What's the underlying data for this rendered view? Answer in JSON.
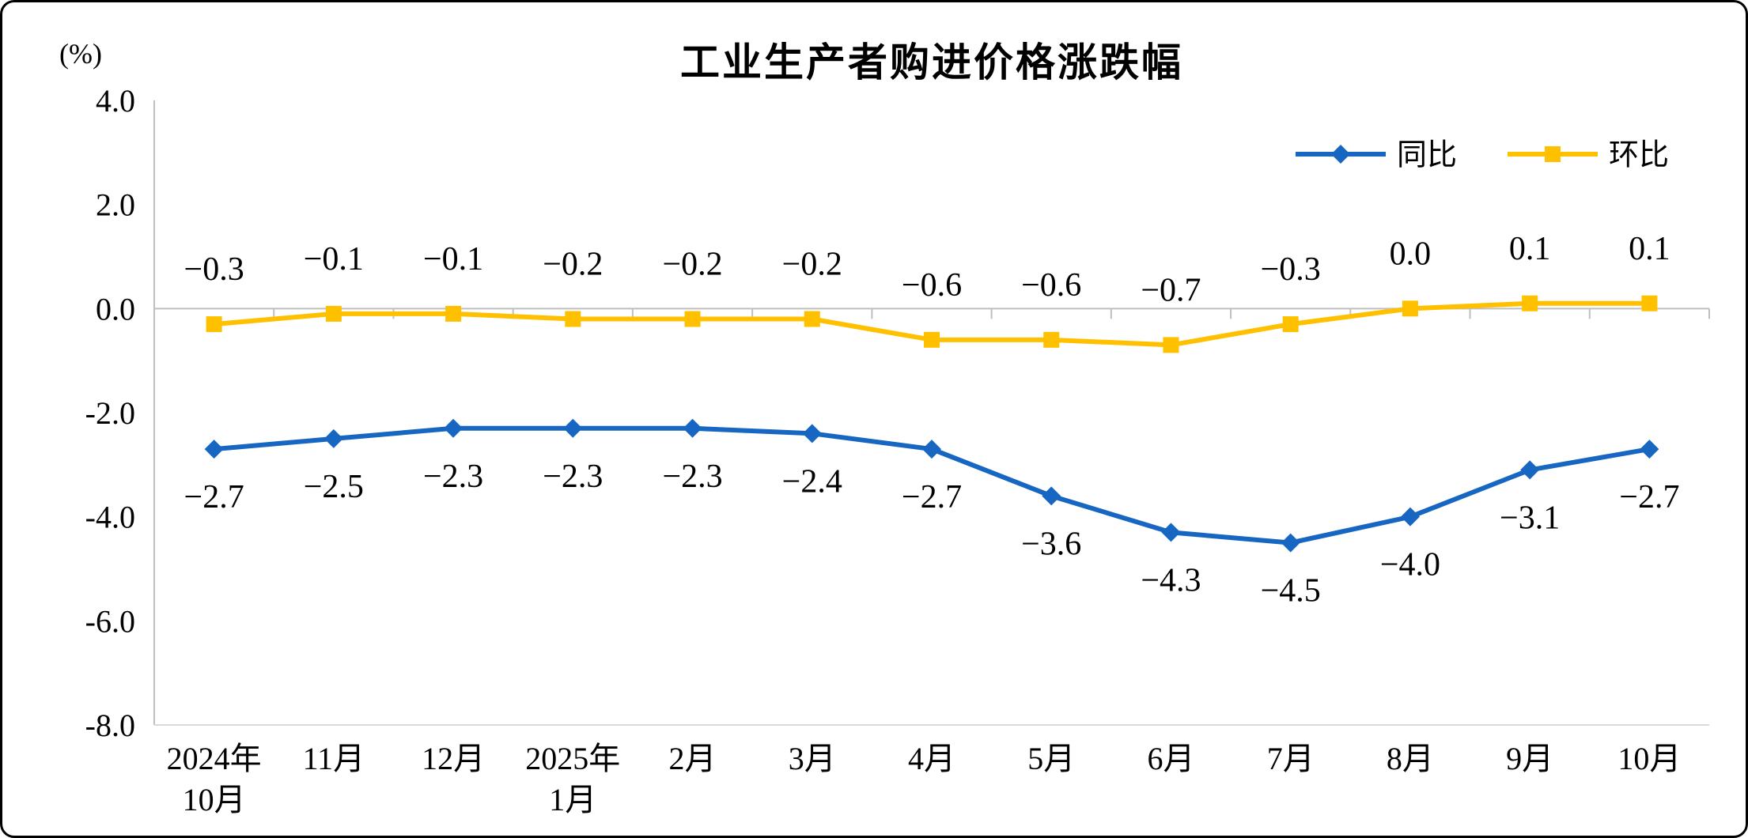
{
  "chart_data": {
    "type": "line",
    "title": "工业生产者购进价格涨跌幅",
    "ylabel": "(%)",
    "xlabel": "",
    "grid": false,
    "legend_position": "top-right",
    "ylim": [
      -8.0,
      4.0
    ],
    "ytick_labels": [
      "4.0",
      "2.0",
      "0.0",
      "-2.0",
      "-4.0",
      "-6.0",
      "-8.0"
    ],
    "axis_color": "#BFBFBF",
    "text_color": "#000000",
    "categories": [
      "2024年\n10月",
      "11月",
      "12月",
      "2025年\n1月",
      "2月",
      "3月",
      "4月",
      "5月",
      "6月",
      "7月",
      "8月",
      "9月",
      "10月"
    ],
    "series": [
      {
        "name": "同比",
        "color": "#1767C2",
        "marker": "diamond",
        "label_position": "below",
        "values": [
          -2.7,
          -2.5,
          -2.3,
          -2.3,
          -2.3,
          -2.4,
          -2.7,
          -3.6,
          -4.3,
          -4.5,
          -4.0,
          -3.1,
          -2.7
        ],
        "labels": [
          "−2.7",
          "−2.5",
          "−2.3",
          "−2.3",
          "−2.3",
          "−2.4",
          "−2.7",
          "−3.6",
          "−4.3",
          "−4.5",
          "−4.0",
          "−3.1",
          "−2.7"
        ]
      },
      {
        "name": "环比",
        "color": "#FFC000",
        "marker": "square",
        "label_position": "above",
        "values": [
          -0.3,
          -0.1,
          -0.1,
          -0.2,
          -0.2,
          -0.2,
          -0.6,
          -0.6,
          -0.7,
          -0.3,
          0.0,
          0.1,
          0.1
        ],
        "labels": [
          "−0.3",
          "−0.1",
          "−0.1",
          "−0.2",
          "−0.2",
          "−0.2",
          "−0.6",
          "−0.6",
          "−0.7",
          "−0.3",
          "0.0",
          "0.1",
          "0.1"
        ]
      }
    ]
  }
}
